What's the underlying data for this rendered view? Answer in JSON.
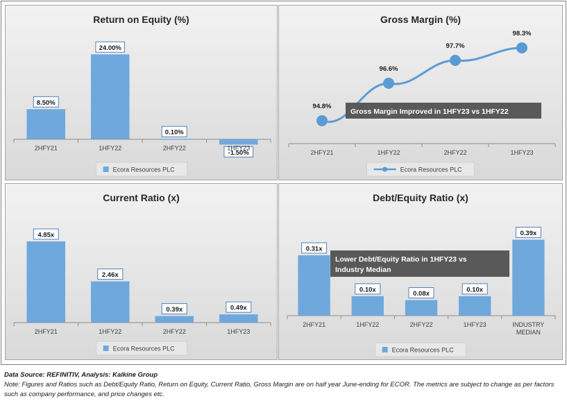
{
  "chart_data": [
    {
      "id": "roe",
      "type": "bar",
      "title": "Return on Equity (%)",
      "categories": [
        "2HFY21",
        "1HFY22",
        "2HFY22",
        "1HFY23"
      ],
      "series": [
        {
          "name": "Ecora Resources PLC",
          "values": [
            8.5,
            24.0,
            0.1,
            -1.5
          ]
        }
      ],
      "data_labels": [
        "8.50%",
        "24.00%",
        "0.10%",
        "-1.50%"
      ],
      "ylim": [
        -3,
        27
      ],
      "color": "#6fa8dc",
      "legend": "bottom",
      "grid": false
    },
    {
      "id": "gm",
      "type": "line",
      "title": "Gross Margin (%)",
      "categories": [
        "2HFY21",
        "1HFY22",
        "2HFY22",
        "1HFY23"
      ],
      "series": [
        {
          "name": "Ecora Resources PLC",
          "values": [
            94.8,
            96.6,
            97.7,
            98.3
          ]
        }
      ],
      "data_labels": [
        "94.8%",
        "96.6%",
        "97.7%",
        "98.3%"
      ],
      "ylim": [
        93.5,
        99
      ],
      "color": "#5b9bd5",
      "legend": "bottom",
      "grid": false,
      "annotation": "Gross Margin Improved in 1HFY23 vs  1HFY22"
    },
    {
      "id": "cr",
      "type": "bar",
      "title": "Current Ratio (x)",
      "categories": [
        "2HFY21",
        "1HFY22",
        "2HFY22",
        "1HFY23"
      ],
      "series": [
        {
          "name": "Ecora Resources PLC",
          "values": [
            4.85,
            2.46,
            0.39,
            0.49
          ]
        }
      ],
      "data_labels": [
        "4.85x",
        "2.46x",
        "0.39x",
        "0.49x"
      ],
      "ylim": [
        0,
        5.8
      ],
      "color": "#6fa8dc",
      "legend": "bottom",
      "grid": false
    },
    {
      "id": "de",
      "type": "bar",
      "title": "Debt/Equity Ratio (x)",
      "categories": [
        "2HFY21",
        "1HFY22",
        "2HFY22",
        "1HFY23",
        "INDUSTRY MEDIAN"
      ],
      "series": [
        {
          "name": "Ecora Resources PLC",
          "values": [
            0.31,
            0.1,
            0.08,
            0.1,
            0.39
          ]
        }
      ],
      "data_labels": [
        "0.31x",
        "0.10x",
        "0.08x",
        "0.10x",
        "0.39x"
      ],
      "ylim": [
        0,
        0.47
      ],
      "color": "#6fa8dc",
      "legend": "bottom",
      "grid": false,
      "annotation": "Lower Debt/Equity Ratio in 1HFY23 vs Industry Median"
    }
  ],
  "footer": {
    "source": "Data Source: REFINITIV, Analysis: Kalkine Group",
    "note": "Note: Figures and Ratios such as Debt/Equity Ratio, Return on Equity, Current Ratio, Gross Margin are on half year June-ending for ECOR. The metrics are subject to change as per factors such as company performance, and price changes etc."
  },
  "colors": {
    "bar": "#6fa8dc",
    "line": "#5b9bd5",
    "annotation_box": "#595959",
    "panel_background": "#e6e6e6"
  }
}
